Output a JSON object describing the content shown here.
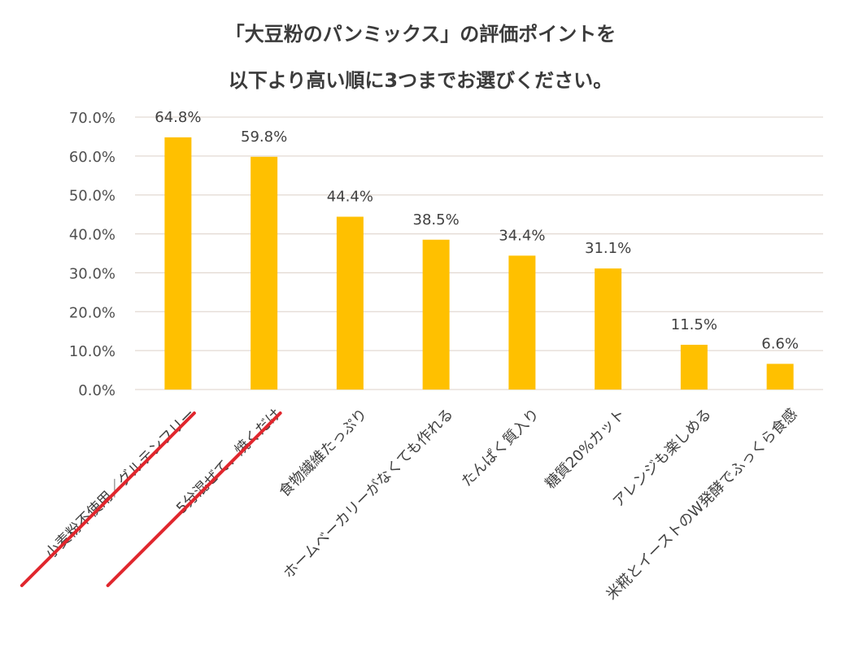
{
  "chart_data": {
    "type": "bar",
    "title_line1": "「大豆粉のパンミックス」の評価ポイントを",
    "title_line2": "以下より高い順に3つまでお選びください。",
    "categories": [
      "小麦粉不使用／グルテンフリー",
      "5分混ぜて、焼くだけ",
      "食物繊維たっぷり",
      "ホームベーカリーがなくても作れる",
      "たんぱく質入り",
      "糖質20%カット",
      "アレンジも楽しめる",
      "米糀とイーストのW発酵でふっくら食感"
    ],
    "values": [
      64.8,
      59.8,
      44.4,
      38.5,
      34.4,
      31.1,
      11.5,
      6.6
    ],
    "value_labels": [
      "64.8%",
      "59.8%",
      "44.4%",
      "38.5%",
      "34.4%",
      "31.1%",
      "11.5%",
      "6.6%"
    ],
    "y_ticks": [
      "0.0%",
      "10.0%",
      "20.0%",
      "30.0%",
      "40.0%",
      "50.0%",
      "60.0%",
      "70.0%"
    ],
    "ylim": [
      0,
      70
    ],
    "highlighted_categories": [
      0,
      1
    ],
    "colors": {
      "bar": "#FFC000",
      "grid": "#E3DAD3",
      "highlight": "#E0262D"
    },
    "grid": true
  }
}
